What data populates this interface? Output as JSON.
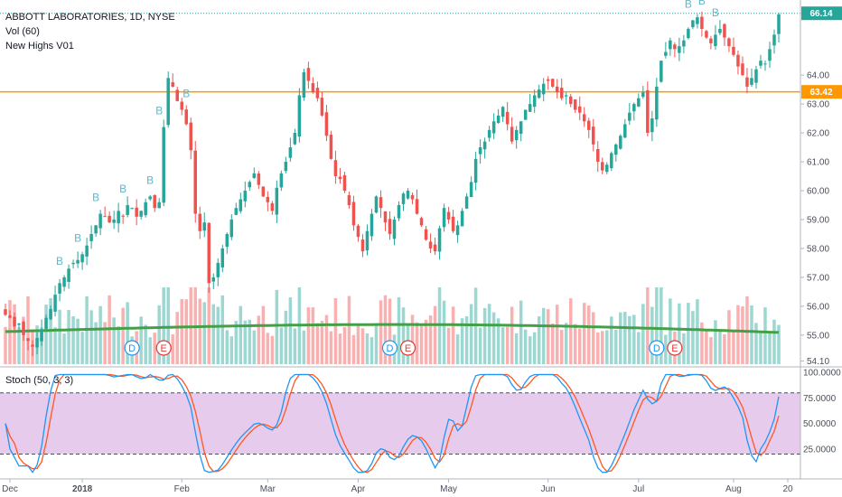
{
  "chart_data": {
    "type": "candlestick",
    "title": "ABBOTT LABORATORIES, 1D, NYSE",
    "indicators": [
      "Vol (60)",
      "New Highs V01"
    ],
    "price_axis": {
      "ylim": [
        53.9,
        66.6
      ],
      "ticks": [
        "64.00",
        "63.00",
        "62.00",
        "61.00",
        "60.00",
        "59.00",
        "58.00",
        "57.00",
        "56.00",
        "55.00",
        "54.10"
      ]
    },
    "last_price": {
      "label": "66.14",
      "value": 66.14,
      "color": "#26a69a"
    },
    "horizontal_line": {
      "label": "63.42",
      "value": 63.42,
      "color": "#ff9800"
    },
    "x_ticks": [
      {
        "label": "Dec",
        "index": 1
      },
      {
        "label": "2018",
        "index": 17
      },
      {
        "label": "Feb",
        "index": 39
      },
      {
        "label": "Mar",
        "index": 58
      },
      {
        "label": "Apr",
        "index": 78
      },
      {
        "label": "May",
        "index": 98
      },
      {
        "label": "Jun",
        "index": 120
      },
      {
        "label": "Jul",
        "index": 140
      },
      {
        "label": "Aug",
        "index": 161
      },
      {
        "label": "20",
        "index": 173
      }
    ],
    "b_markers": [
      12,
      16,
      20,
      26,
      32,
      34,
      40,
      151,
      154,
      157
    ],
    "event_markers": [
      {
        "label": "D",
        "index": 28,
        "color": "#2196f3"
      },
      {
        "label": "E",
        "index": 35,
        "color": "#e53935"
      },
      {
        "label": "D",
        "index": 85,
        "color": "#2196f3"
      },
      {
        "label": "E",
        "index": 89,
        "color": "#e53935"
      },
      {
        "label": "D",
        "index": 144,
        "color": "#2196f3"
      },
      {
        "label": "E",
        "index": 148,
        "color": "#e53935"
      }
    ],
    "closes": [
      55.7,
      55.6,
      55.3,
      55.4,
      55.0,
      54.8,
      54.6,
      54.9,
      55.2,
      55.6,
      55.9,
      56.4,
      56.8,
      57.0,
      57.3,
      57.5,
      57.6,
      57.8,
      58.1,
      58.5,
      58.8,
      59.2,
      59.1,
      58.9,
      59.0,
      59.3,
      59.1,
      59.5,
      59.4,
      59.1,
      59.3,
      59.6,
      59.8,
      59.4,
      59.6,
      62.2,
      63.9,
      63.6,
      63.1,
      62.8,
      62.3,
      61.4,
      59.2,
      58.6,
      58.9,
      56.8,
      57.0,
      57.5,
      58.0,
      58.5,
      59.0,
      59.4,
      59.7,
      60.0,
      60.3,
      60.6,
      60.2,
      59.8,
      59.6,
      59.3,
      60.1,
      60.6,
      61.0,
      61.5,
      62.0,
      63.3,
      64.1,
      63.8,
      63.4,
      63.2,
      62.6,
      61.9,
      61.1,
      60.5,
      60.4,
      60.0,
      59.5,
      58.8,
      58.4,
      57.9,
      58.6,
      59.2,
      59.8,
      59.4,
      58.9,
      58.5,
      59.0,
      59.5,
      59.9,
      60.0,
      59.7,
      59.2,
      58.8,
      58.3,
      58.0,
      57.9,
      58.7,
      59.4,
      59.0,
      58.6,
      58.8,
      59.3,
      59.8,
      60.3,
      61.1,
      61.5,
      61.7,
      62.1,
      62.4,
      62.6,
      62.9,
      62.3,
      61.7,
      62.1,
      62.4,
      62.8,
      63.0,
      63.3,
      63.5,
      63.7,
      63.8,
      63.6,
      63.4,
      63.2,
      63.3,
      63.0,
      62.8,
      62.7,
      62.4,
      62.1,
      61.6,
      61.0,
      60.7,
      60.9,
      61.3,
      61.6,
      61.9,
      62.3,
      62.7,
      63.0,
      63.2,
      63.4,
      62.0,
      62.5,
      63.6,
      64.5,
      64.8,
      65.2,
      64.9,
      65.0,
      65.2,
      65.6,
      65.9,
      66.0,
      65.6,
      65.3,
      65.1,
      65.4,
      65.6,
      65.3,
      65.0,
      64.7,
      64.3,
      64.0,
      63.6,
      63.9,
      64.2,
      64.5,
      64.4,
      64.9,
      65.4,
      66.1
    ],
    "volume_colors": {
      "up": "#26a69a",
      "down": "#ef5350",
      "ma": "#43a047"
    },
    "stoch": {
      "label": "Stoch (50, 3, 3)",
      "ylim": [
        0,
        100
      ],
      "ticks": [
        "100.0000",
        "75.0000",
        "50.0000",
        "25.0000"
      ],
      "upper_band": 80,
      "lower_band": 20,
      "k_color": "#2196f3",
      "d_color": "#ff5722",
      "band_fill": "#e1bee7"
    }
  }
}
